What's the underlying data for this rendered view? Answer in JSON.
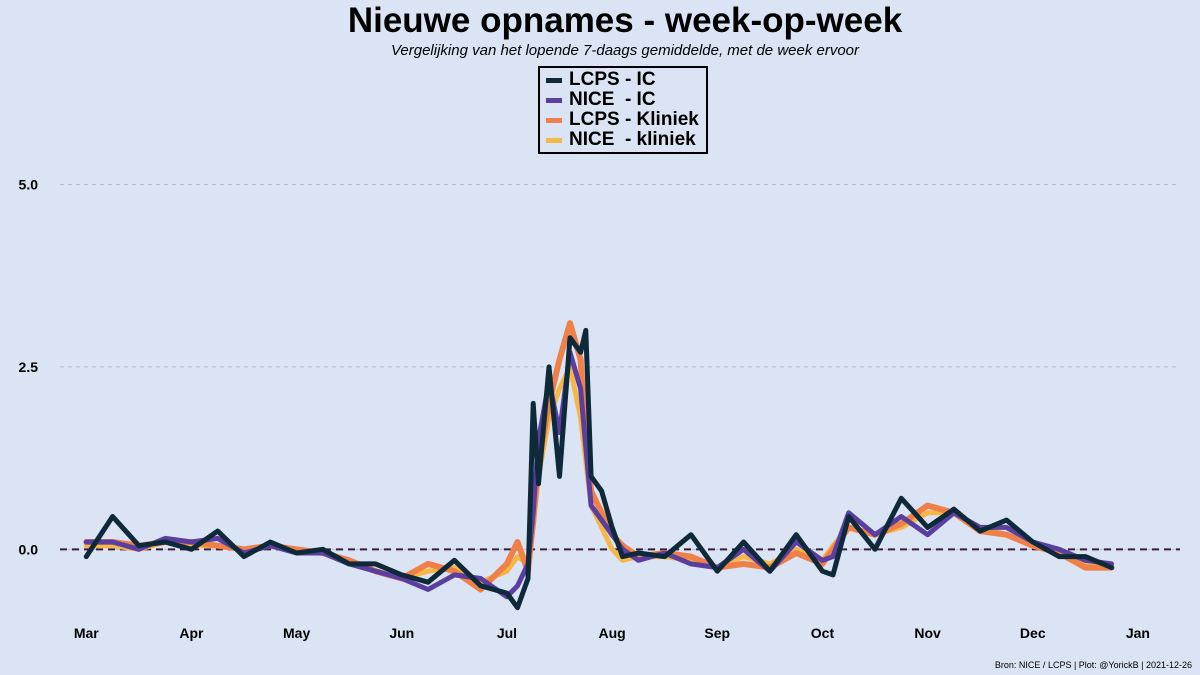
{
  "chart_data": {
    "type": "line",
    "title": "Nieuwe opnames - week-op-week",
    "subtitle": "Vergelijking van het lopende 7-daags gemiddelde, met de week ervoor",
    "xlabel": "",
    "ylabel": "",
    "ylim": [
      -0.9,
      5.5
    ],
    "yticks": [
      0.0,
      2.5,
      5.0
    ],
    "ytick_labels": [
      "0.0",
      "2.5",
      "5.0"
    ],
    "xticks": [
      0,
      1,
      2,
      3,
      4,
      5,
      6,
      7,
      8,
      9,
      10
    ],
    "xtick_labels": [
      "Mar",
      "Apr",
      "May",
      "Jun",
      "Jul",
      "Aug",
      "Sep",
      "Oct",
      "Nov",
      "Dec",
      "Jan"
    ],
    "xlim": [
      -0.25,
      10.4
    ],
    "grid": "horizontal dashed",
    "reference_line": 0.0,
    "legend_position": "top-center",
    "x": [
      0.0,
      0.25,
      0.5,
      0.75,
      1.0,
      1.25,
      1.5,
      1.75,
      2.0,
      2.25,
      2.5,
      2.75,
      3.0,
      3.25,
      3.5,
      3.75,
      4.0,
      4.1,
      4.2,
      4.25,
      4.3,
      4.4,
      4.5,
      4.6,
      4.7,
      4.75,
      4.8,
      4.9,
      5.0,
      5.1,
      5.25,
      5.5,
      5.75,
      6.0,
      6.25,
      6.5,
      6.75,
      7.0,
      7.1,
      7.25,
      7.5,
      7.75,
      8.0,
      8.25,
      8.5,
      8.75,
      9.0,
      9.25,
      9.5,
      9.75
    ],
    "series": [
      {
        "name": "LCPS - IC",
        "color": "#0e2a3a",
        "values": [
          -0.1,
          0.45,
          0.05,
          0.1,
          0.0,
          0.25,
          -0.1,
          0.1,
          -0.05,
          0.0,
          -0.2,
          -0.2,
          -0.35,
          -0.45,
          -0.15,
          -0.5,
          -0.6,
          -0.8,
          -0.4,
          2.0,
          0.9,
          2.5,
          1.0,
          2.9,
          2.7,
          3.0,
          1.0,
          0.8,
          0.3,
          -0.1,
          -0.05,
          -0.1,
          0.2,
          -0.3,
          0.1,
          -0.3,
          0.2,
          -0.3,
          -0.35,
          0.45,
          0.0,
          0.7,
          0.3,
          0.55,
          0.25,
          0.4,
          0.1,
          -0.1,
          -0.1,
          -0.25
        ]
      },
      {
        "name": "NICE  - IC",
        "color": "#5b3fa0",
        "values": [
          0.1,
          0.1,
          0.0,
          0.15,
          0.1,
          0.15,
          -0.05,
          0.05,
          -0.05,
          -0.05,
          -0.2,
          -0.3,
          -0.4,
          -0.55,
          -0.35,
          -0.4,
          -0.65,
          -0.5,
          -0.2,
          0.5,
          1.5,
          2.3,
          1.6,
          2.7,
          2.2,
          1.4,
          0.6,
          0.4,
          0.2,
          0.0,
          -0.15,
          -0.05,
          -0.2,
          -0.25,
          0.0,
          -0.3,
          0.1,
          -0.15,
          -0.1,
          0.5,
          0.2,
          0.45,
          0.2,
          0.5,
          0.3,
          0.3,
          0.1,
          0.0,
          -0.15,
          -0.2
        ]
      },
      {
        "name": "LCPS - Kliniek",
        "color": "#ee8048",
        "values": [
          0.1,
          0.1,
          0.05,
          0.1,
          0.1,
          0.05,
          0.0,
          0.05,
          0.0,
          -0.05,
          -0.15,
          -0.3,
          -0.4,
          -0.2,
          -0.3,
          -0.55,
          -0.2,
          0.1,
          -0.3,
          0.4,
          1.2,
          2.0,
          2.6,
          3.1,
          2.6,
          1.5,
          0.8,
          0.5,
          0.2,
          0.05,
          -0.1,
          -0.05,
          -0.1,
          -0.25,
          -0.2,
          -0.25,
          -0.05,
          -0.2,
          0.0,
          0.3,
          0.2,
          0.35,
          0.6,
          0.5,
          0.25,
          0.2,
          0.05,
          -0.05,
          -0.25,
          -0.25
        ]
      },
      {
        "name": "NICE  - kliniek",
        "color": "#f5b746",
        "values": [
          0.05,
          0.05,
          0.0,
          0.1,
          0.05,
          0.05,
          0.0,
          0.05,
          0.0,
          -0.05,
          -0.2,
          -0.3,
          -0.4,
          -0.3,
          -0.25,
          -0.45,
          -0.3,
          -0.1,
          -0.2,
          0.3,
          1.0,
          1.8,
          2.2,
          2.5,
          1.8,
          1.2,
          0.6,
          0.3,
          0.0,
          -0.15,
          -0.1,
          -0.1,
          -0.15,
          -0.25,
          -0.1,
          -0.2,
          0.0,
          -0.15,
          0.05,
          0.3,
          0.2,
          0.3,
          0.5,
          0.5,
          0.3,
          0.2,
          0.05,
          -0.05,
          -0.2,
          -0.25
        ]
      }
    ]
  },
  "credit": "Bron: NICE / LCPS | Plot: @YorickB |  2021-12-26"
}
